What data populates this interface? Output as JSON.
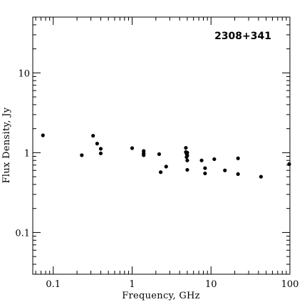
{
  "chart_data": {
    "type": "scatter",
    "title": "2308+341",
    "xlabel": "Frequency, GHz",
    "ylabel": "Flux Density, Jy",
    "xscale": "log",
    "yscale": "log",
    "xlim": [
      0.055,
      100
    ],
    "ylim": [
      0.03,
      50
    ],
    "grid": false,
    "x_ticks": [
      {
        "value": 0.1,
        "label": "0.1"
      },
      {
        "value": 1,
        "label": "1"
      },
      {
        "value": 10,
        "label": "10"
      },
      {
        "value": 100,
        "label": "100"
      }
    ],
    "y_ticks": [
      {
        "value": 0.1,
        "label": "0.1"
      },
      {
        "value": 1,
        "label": "1"
      },
      {
        "value": 10,
        "label": "10"
      }
    ],
    "x": [
      0.074,
      0.23,
      0.32,
      0.36,
      0.4,
      0.4,
      1.0,
      1.4,
      1.4,
      1.4,
      2.2,
      2.3,
      2.7,
      4.8,
      4.8,
      4.9,
      4.9,
      5.0,
      5.0,
      5.0,
      5.0,
      7.6,
      8.4,
      8.4,
      11.0,
      15.0,
      22.0,
      22.0,
      43.0,
      100.0
    ],
    "y": [
      1.65,
      0.93,
      1.63,
      1.3,
      1.12,
      0.98,
      1.14,
      1.05,
      0.98,
      0.93,
      0.96,
      0.57,
      0.67,
      1.15,
      1.02,
      0.97,
      0.88,
      1.0,
      0.92,
      0.8,
      0.61,
      0.8,
      0.64,
      0.55,
      0.83,
      0.6,
      0.85,
      0.54,
      0.5,
      0.72
    ]
  }
}
